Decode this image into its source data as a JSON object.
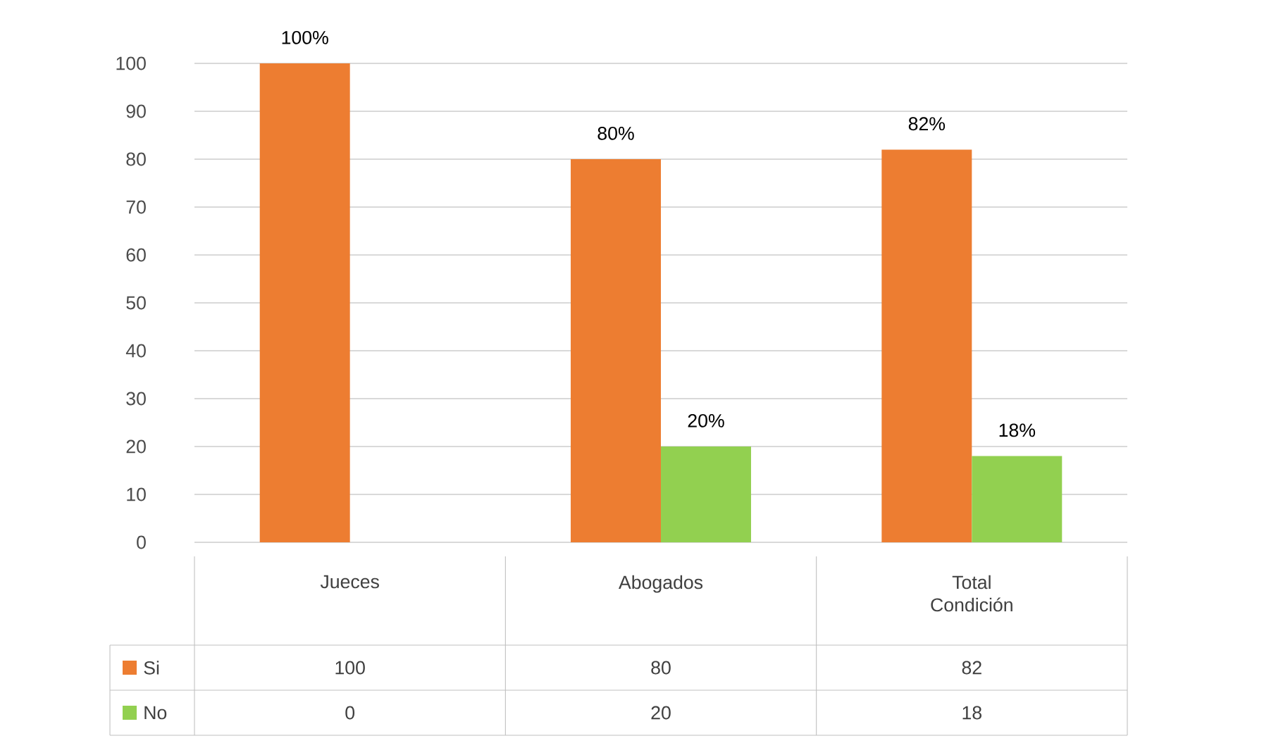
{
  "chart_data": {
    "type": "bar",
    "categories": [
      "Jueces",
      "Abogados",
      "Total Condición"
    ],
    "series": [
      {
        "name": "Si",
        "color": "#ed7d31",
        "values": [
          100,
          80,
          82
        ]
      },
      {
        "name": "No",
        "color": "#92d050",
        "values": [
          0,
          20,
          18
        ]
      }
    ],
    "annotations": [
      {
        "text": "100%",
        "x": "Jueces",
        "y": 100
      },
      {
        "text": "80%",
        "x": "Abogados",
        "y": 80
      },
      {
        "text": "82%",
        "x": "Total Condición",
        "y": 82
      },
      {
        "text": "20%",
        "x": "Abogados",
        "y": 20
      },
      {
        "text": "18%",
        "x": "Total Condición",
        "y": 18
      }
    ],
    "ylim": [
      0,
      100
    ],
    "yticks": [
      0,
      10,
      20,
      30,
      40,
      50,
      60,
      70,
      80,
      90,
      100
    ],
    "grid": "y",
    "legend": "bottom",
    "data_labels": true
  }
}
